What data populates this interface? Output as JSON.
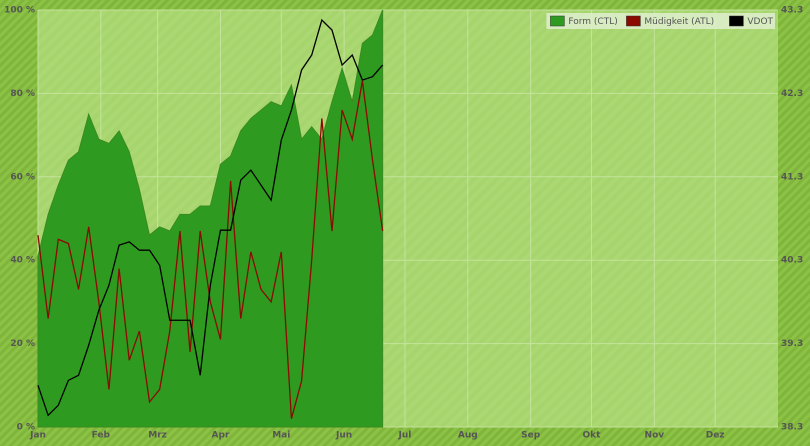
{
  "chart_data": {
    "type": "area-line",
    "x": [
      1,
      6,
      11,
      16,
      21,
      26,
      31,
      36,
      41,
      46,
      51,
      56,
      61,
      66,
      71,
      76,
      81,
      86,
      91,
      96,
      101,
      106,
      111,
      116,
      121,
      126,
      131,
      136,
      141,
      146,
      151,
      156,
      161,
      166,
      171
    ],
    "xlim": [
      1,
      366
    ],
    "xticks": [
      {
        "value": 1,
        "label": "Jan"
      },
      {
        "value": 32,
        "label": "Feb"
      },
      {
        "value": 60,
        "label": "Mrz"
      },
      {
        "value": 91,
        "label": "Apr"
      },
      {
        "value": 121,
        "label": "Mai"
      },
      {
        "value": 152,
        "label": "Jun"
      },
      {
        "value": 182,
        "label": "Jul"
      },
      {
        "value": 213,
        "label": "Aug"
      },
      {
        "value": 244,
        "label": "Sep"
      },
      {
        "value": 274,
        "label": "Okt"
      },
      {
        "value": 305,
        "label": "Nov"
      },
      {
        "value": 335,
        "label": "Dez"
      }
    ],
    "ylim": [
      0,
      100
    ],
    "yticks": [
      {
        "value": 0,
        "label": "0 %"
      },
      {
        "value": 20,
        "label": "20 %"
      },
      {
        "value": 40,
        "label": "40 %"
      },
      {
        "value": 60,
        "label": "60 %"
      },
      {
        "value": 80,
        "label": "80 %"
      },
      {
        "value": 100,
        "label": "100 %"
      }
    ],
    "y2lim": [
      38.3,
      43.3
    ],
    "y2ticks": [
      38.3,
      39.3,
      40.3,
      41.3,
      42.3,
      43.3
    ],
    "grid": true,
    "legend": "top-right",
    "series": [
      {
        "name": "Form (CTL)",
        "color": "#2e9b20",
        "kind": "area",
        "values": [
          41,
          51,
          58,
          64,
          66,
          75,
          69,
          68,
          71,
          66,
          57,
          46,
          48,
          47,
          51,
          51,
          53,
          53,
          63,
          65,
          71,
          74,
          76,
          78,
          77,
          82,
          69,
          72,
          69,
          78,
          86,
          78,
          92,
          94,
          100
        ]
      },
      {
        "name": "Müdigkeit (ATL)",
        "color": "#8b0a00",
        "kind": "line",
        "values": [
          46,
          26,
          45,
          44,
          33,
          48,
          30,
          9,
          38,
          16,
          23,
          6,
          9,
          23,
          47,
          18,
          47,
          30,
          21,
          59,
          26,
          42,
          33,
          30,
          42,
          2,
          11,
          40,
          74,
          47,
          76,
          69,
          83,
          64,
          47
        ]
      },
      {
        "name": "VDOT",
        "color": "#000000",
        "kind": "line",
        "axis": "y2",
        "values": [
          38.8,
          38.44,
          38.56,
          38.86,
          38.92,
          39.28,
          39.7,
          40.0,
          40.48,
          40.52,
          40.42,
          40.42,
          40.24,
          39.58,
          39.58,
          39.58,
          38.92,
          40.0,
          40.66,
          40.66,
          41.26,
          41.38,
          41.2,
          41.02,
          41.74,
          42.1,
          42.58,
          42.76,
          43.18,
          43.06,
          42.64,
          42.76,
          42.46,
          42.5,
          42.64
        ]
      }
    ]
  }
}
